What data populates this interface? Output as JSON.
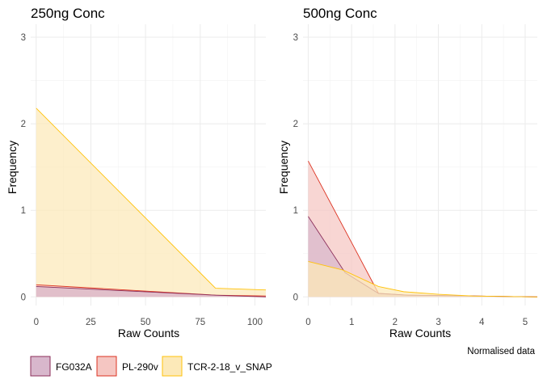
{
  "chart_data": [
    {
      "type": "area",
      "title": "250ng Conc",
      "xlabel": "Raw Counts",
      "ylabel": "Frequency",
      "xlim": [
        -2.5,
        105
      ],
      "ylim": [
        -0.1,
        3.15
      ],
      "xticks": [
        0,
        25,
        50,
        75,
        100
      ],
      "yticks": [
        0,
        1,
        2,
        3
      ],
      "grid": true,
      "series": [
        {
          "name": "TCR-2-18_v_SNAP",
          "color": "#FFC20A",
          "fill": "#FCE9B8",
          "x": [
            0,
            82,
            105
          ],
          "y": [
            2.18,
            0.1,
            0.08
          ]
        },
        {
          "name": "PL-290v",
          "color": "#DC3220",
          "fill": "#F5C6C2",
          "x": [
            0,
            82,
            105
          ],
          "y": [
            0.14,
            0.02,
            0.01
          ]
        },
        {
          "name": "FG032A",
          "color": "#8B2E5A",
          "fill": "#D8B7CC",
          "x": [
            0,
            82,
            105
          ],
          "y": [
            0.12,
            0.02,
            0.0
          ]
        }
      ]
    },
    {
      "type": "area",
      "title": "500ng Conc",
      "xlabel": "Raw Counts",
      "ylabel": "Frequency",
      "xlim": [
        -0.12,
        5.28
      ],
      "ylim": [
        -0.1,
        3.15
      ],
      "xticks": [
        0,
        1,
        2,
        3,
        4,
        5
      ],
      "yticks": [
        0,
        1,
        2,
        3
      ],
      "grid": true,
      "series": [
        {
          "name": "PL-290v",
          "color": "#DC3220",
          "fill": "#F5C6C2",
          "x": [
            0,
            1.05,
            1.62,
            2.3,
            3.8,
            5.28
          ],
          "y": [
            1.57,
            0.58,
            0.04,
            0.02,
            0.01,
            0.0
          ]
        },
        {
          "name": "FG032A",
          "color": "#8B2E5A",
          "fill": "#D8B7CC",
          "x": [
            0,
            0.85,
            1.62,
            2.3,
            3.8,
            5.28
          ],
          "y": [
            0.93,
            0.28,
            0.04,
            0.02,
            0.01,
            0.0
          ]
        },
        {
          "name": "TCR-2-18_v_SNAP",
          "color": "#FFC20A",
          "fill": "#FCE9B8",
          "x": [
            0,
            0.8,
            1.62,
            2.2,
            3.0,
            3.8,
            5.28
          ],
          "y": [
            0.41,
            0.31,
            0.12,
            0.06,
            0.03,
            0.01,
            0.0
          ]
        }
      ]
    }
  ],
  "legend": {
    "position": "bottom",
    "items": [
      {
        "label": "FG032A",
        "fill": "#D8B7CC",
        "stroke": "#8B2E5A"
      },
      {
        "label": "PL-290v",
        "fill": "#F5C6C2",
        "stroke": "#DC3220"
      },
      {
        "label": "TCR-2-18_v_SNAP",
        "fill": "#FCE9B8",
        "stroke": "#FFC20A"
      }
    ]
  },
  "caption": "Normalised data"
}
